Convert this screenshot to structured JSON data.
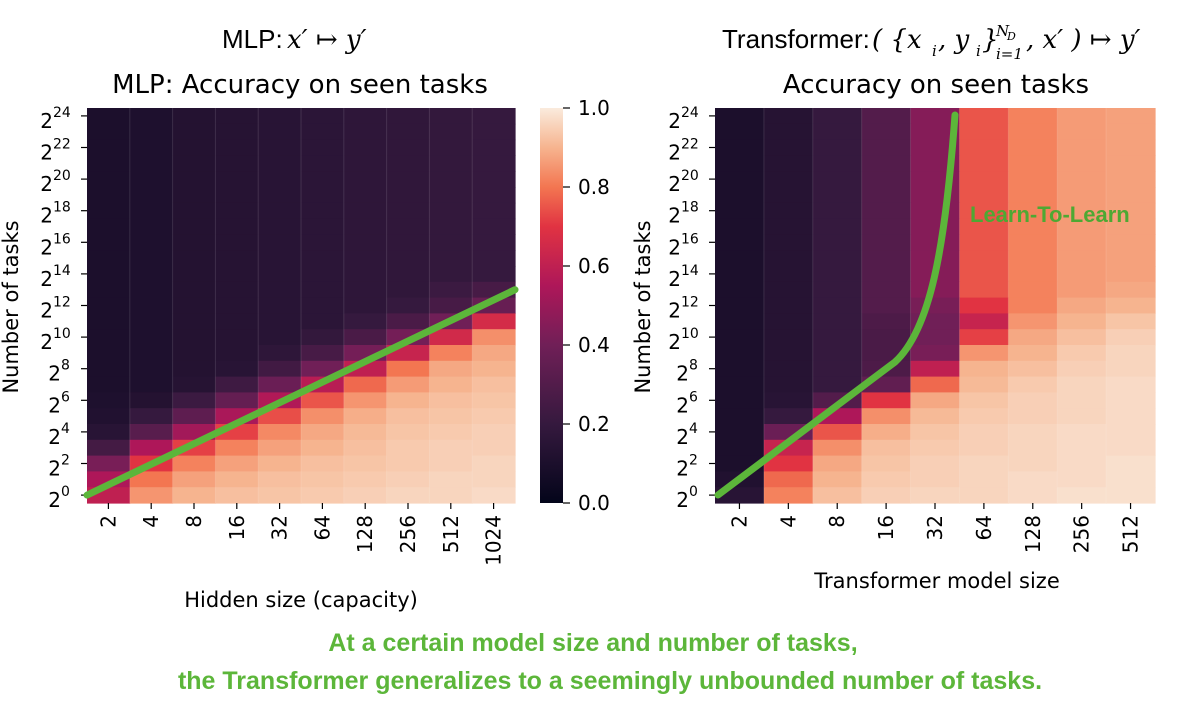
{
  "header_left": {
    "label": "MLP:",
    "formula": "x′ ↦ y′"
  },
  "header_right": {
    "label": "Transformer:",
    "formula_open": "( {x",
    "formula_sub": "i",
    "formula_mid": ", y",
    "formula_sub2": "i",
    "formula_close": "}",
    "formula_sup": "N",
    "formula_sup_sub": "D",
    "formula_range": "i=1",
    "formula_end": ", x′ ) ↦ y′"
  },
  "annotation": "Learn-To-Learn",
  "caption_line1": "At a certain model size and number of tasks,",
  "caption_line2": "the Transformer generalizes to a seemingly unbounded number of tasks.",
  "colorbar": {
    "ticks": [
      "1.0",
      "0.8",
      "0.6",
      "0.4",
      "0.2",
      "0.0"
    ],
    "values": [
      1.0,
      0.8,
      0.6,
      0.4,
      0.2,
      0.0
    ],
    "colormap": "rocket"
  },
  "chart_data": [
    {
      "type": "heatmap",
      "title": "MLP: Accuracy on seen tasks",
      "xlabel": "Hidden size (capacity)",
      "ylabel": "Number of tasks",
      "x_categories": [
        "2",
        "4",
        "8",
        "16",
        "32",
        "64",
        "128",
        "256",
        "512",
        "1024"
      ],
      "y_tick_exponents": [
        "0",
        "2",
        "4",
        "6",
        "8",
        "10",
        "12",
        "14",
        "16",
        "18",
        "20",
        "22",
        "24"
      ],
      "y_tick_base": "2",
      "y_rows_exponent_range": [
        0,
        25
      ],
      "color_range": [
        0,
        1
      ],
      "values_rows_top_to_bottom": [
        [
          0.1,
          0.11,
          0.13,
          0.14,
          0.15,
          0.16,
          0.17,
          0.18,
          0.19,
          0.2
        ],
        [
          0.1,
          0.11,
          0.13,
          0.14,
          0.15,
          0.16,
          0.17,
          0.18,
          0.19,
          0.2
        ],
        [
          0.1,
          0.11,
          0.13,
          0.14,
          0.15,
          0.16,
          0.17,
          0.18,
          0.19,
          0.2
        ],
        [
          0.1,
          0.11,
          0.13,
          0.14,
          0.15,
          0.16,
          0.17,
          0.18,
          0.19,
          0.2
        ],
        [
          0.1,
          0.11,
          0.13,
          0.14,
          0.15,
          0.16,
          0.17,
          0.18,
          0.19,
          0.2
        ],
        [
          0.1,
          0.11,
          0.13,
          0.14,
          0.15,
          0.16,
          0.17,
          0.18,
          0.19,
          0.2
        ],
        [
          0.1,
          0.11,
          0.13,
          0.14,
          0.15,
          0.16,
          0.17,
          0.18,
          0.19,
          0.2
        ],
        [
          0.1,
          0.11,
          0.13,
          0.14,
          0.15,
          0.16,
          0.17,
          0.18,
          0.19,
          0.2
        ],
        [
          0.1,
          0.11,
          0.13,
          0.14,
          0.15,
          0.16,
          0.17,
          0.18,
          0.19,
          0.2
        ],
        [
          0.1,
          0.11,
          0.13,
          0.14,
          0.15,
          0.16,
          0.17,
          0.18,
          0.19,
          0.2
        ],
        [
          0.1,
          0.11,
          0.13,
          0.14,
          0.15,
          0.16,
          0.17,
          0.18,
          0.19,
          0.2
        ],
        [
          0.1,
          0.11,
          0.13,
          0.14,
          0.15,
          0.16,
          0.17,
          0.18,
          0.22,
          0.26
        ],
        [
          0.1,
          0.11,
          0.13,
          0.14,
          0.15,
          0.16,
          0.17,
          0.2,
          0.26,
          0.37
        ],
        [
          0.1,
          0.11,
          0.13,
          0.14,
          0.15,
          0.16,
          0.2,
          0.27,
          0.4,
          0.66
        ],
        [
          0.1,
          0.11,
          0.13,
          0.14,
          0.15,
          0.19,
          0.27,
          0.41,
          0.65,
          0.84
        ],
        [
          0.1,
          0.11,
          0.13,
          0.14,
          0.17,
          0.26,
          0.41,
          0.62,
          0.82,
          0.88
        ],
        [
          0.1,
          0.11,
          0.13,
          0.15,
          0.24,
          0.4,
          0.6,
          0.8,
          0.88,
          0.9
        ],
        [
          0.1,
          0.11,
          0.14,
          0.23,
          0.38,
          0.58,
          0.78,
          0.86,
          0.9,
          0.92
        ],
        [
          0.11,
          0.13,
          0.22,
          0.36,
          0.56,
          0.75,
          0.85,
          0.9,
          0.92,
          0.93
        ],
        [
          0.12,
          0.2,
          0.34,
          0.54,
          0.74,
          0.84,
          0.89,
          0.92,
          0.93,
          0.94
        ],
        [
          0.15,
          0.32,
          0.52,
          0.72,
          0.83,
          0.88,
          0.91,
          0.93,
          0.94,
          0.95
        ],
        [
          0.25,
          0.55,
          0.72,
          0.82,
          0.87,
          0.9,
          0.92,
          0.94,
          0.95,
          0.95
        ],
        [
          0.42,
          0.7,
          0.82,
          0.87,
          0.9,
          0.92,
          0.93,
          0.94,
          0.95,
          0.96
        ],
        [
          0.55,
          0.8,
          0.87,
          0.9,
          0.92,
          0.93,
          0.94,
          0.95,
          0.96,
          0.96
        ],
        [
          0.6,
          0.85,
          0.9,
          0.92,
          0.93,
          0.94,
          0.95,
          0.96,
          0.96,
          0.97
        ]
      ],
      "overlay_line": {
        "color": "#5cb63a",
        "x_index": [
          0,
          10
        ],
        "y_exponent": [
          0,
          13
        ]
      }
    },
    {
      "type": "heatmap",
      "title": "Accuracy on seen tasks",
      "xlabel": "Transformer model size",
      "ylabel": "Number of tasks",
      "x_categories": [
        "2",
        "4",
        "8",
        "16",
        "32",
        "64",
        "128",
        "256",
        "512"
      ],
      "y_tick_exponents": [
        "0",
        "2",
        "4",
        "6",
        "8",
        "10",
        "12",
        "14",
        "16",
        "18",
        "20",
        "22",
        "24"
      ],
      "y_tick_base": "2",
      "y_rows_exponent_range": [
        0,
        25
      ],
      "color_range": [
        0,
        1
      ],
      "values_rows_top_to_bottom": [
        [
          0.1,
          0.14,
          0.2,
          0.3,
          0.45,
          0.75,
          0.82,
          0.86,
          0.87
        ],
        [
          0.1,
          0.14,
          0.2,
          0.3,
          0.45,
          0.75,
          0.82,
          0.86,
          0.87
        ],
        [
          0.1,
          0.14,
          0.2,
          0.3,
          0.45,
          0.75,
          0.82,
          0.86,
          0.87
        ],
        [
          0.1,
          0.14,
          0.2,
          0.3,
          0.45,
          0.75,
          0.82,
          0.86,
          0.87
        ],
        [
          0.1,
          0.14,
          0.2,
          0.3,
          0.45,
          0.75,
          0.82,
          0.86,
          0.87
        ],
        [
          0.1,
          0.14,
          0.2,
          0.3,
          0.45,
          0.75,
          0.82,
          0.86,
          0.87
        ],
        [
          0.1,
          0.14,
          0.2,
          0.3,
          0.45,
          0.75,
          0.82,
          0.86,
          0.87
        ],
        [
          0.1,
          0.14,
          0.2,
          0.3,
          0.45,
          0.75,
          0.82,
          0.86,
          0.87
        ],
        [
          0.1,
          0.14,
          0.2,
          0.3,
          0.45,
          0.75,
          0.82,
          0.86,
          0.87
        ],
        [
          0.1,
          0.14,
          0.2,
          0.3,
          0.45,
          0.75,
          0.82,
          0.86,
          0.87
        ],
        [
          0.1,
          0.14,
          0.2,
          0.3,
          0.45,
          0.75,
          0.82,
          0.86,
          0.87
        ],
        [
          0.1,
          0.14,
          0.2,
          0.3,
          0.45,
          0.75,
          0.82,
          0.86,
          0.88
        ],
        [
          0.1,
          0.14,
          0.2,
          0.3,
          0.42,
          0.7,
          0.82,
          0.88,
          0.9
        ],
        [
          0.1,
          0.14,
          0.2,
          0.28,
          0.4,
          0.62,
          0.85,
          0.9,
          0.93
        ],
        [
          0.1,
          0.14,
          0.2,
          0.27,
          0.4,
          0.72,
          0.88,
          0.92,
          0.95
        ],
        [
          0.1,
          0.14,
          0.2,
          0.27,
          0.42,
          0.85,
          0.9,
          0.94,
          0.96
        ],
        [
          0.1,
          0.14,
          0.2,
          0.28,
          0.6,
          0.9,
          0.92,
          0.95,
          0.96
        ],
        [
          0.1,
          0.14,
          0.2,
          0.35,
          0.78,
          0.91,
          0.94,
          0.96,
          0.97
        ],
        [
          0.1,
          0.15,
          0.3,
          0.7,
          0.88,
          0.93,
          0.95,
          0.96,
          0.97
        ],
        [
          0.1,
          0.2,
          0.55,
          0.84,
          0.91,
          0.94,
          0.95,
          0.96,
          0.97
        ],
        [
          0.1,
          0.38,
          0.75,
          0.89,
          0.93,
          0.95,
          0.96,
          0.97,
          0.97
        ],
        [
          0.1,
          0.62,
          0.84,
          0.92,
          0.94,
          0.95,
          0.96,
          0.97,
          0.97
        ],
        [
          0.1,
          0.7,
          0.88,
          0.93,
          0.95,
          0.96,
          0.96,
          0.97,
          0.98
        ],
        [
          0.12,
          0.78,
          0.9,
          0.94,
          0.95,
          0.96,
          0.97,
          0.97,
          0.98
        ],
        [
          0.15,
          0.82,
          0.92,
          0.95,
          0.96,
          0.96,
          0.97,
          0.98,
          0.98
        ]
      ],
      "overlay_line": {
        "color": "#5cb63a",
        "label": "Learn-To-Learn"
      }
    }
  ]
}
